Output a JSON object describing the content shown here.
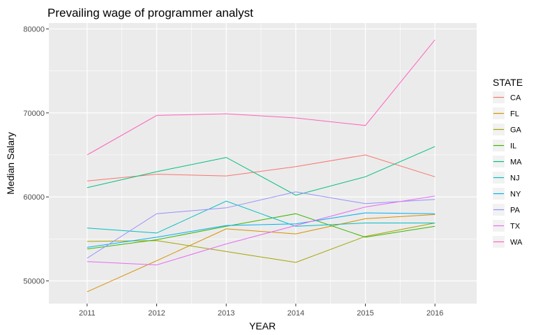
{
  "chart_data": {
    "type": "line",
    "title": "Prevailing wage of programmer analyst",
    "xlabel": "YEAR",
    "ylabel": "Median Salary",
    "x": [
      2011,
      2012,
      2013,
      2014,
      2015,
      2016
    ],
    "x_tick_labels": [
      "2011",
      "2012",
      "2013",
      "2014",
      "2015",
      "2016"
    ],
    "y_ticks": [
      50000,
      60000,
      70000,
      80000
    ],
    "y_tick_labels": [
      "50000",
      "60000",
      "70000",
      "80000"
    ],
    "xlim": [
      2010.45,
      2016.6
    ],
    "ylim": [
      47300,
      80700
    ],
    "grid": true,
    "legend_title": "STATE",
    "legend_position": "right",
    "panel_background": "#ebebeb",
    "grid_color": "#ffffff",
    "series": [
      {
        "name": "CA",
        "color": "#F8766D",
        "values": [
          61900,
          62700,
          62500,
          63600,
          65000,
          62400
        ]
      },
      {
        "name": "FL",
        "color": "#D89000",
        "values": [
          48700,
          52400,
          56200,
          55600,
          57400,
          57900
        ]
      },
      {
        "name": "GA",
        "color": "#A3A500",
        "values": [
          54700,
          54800,
          53500,
          52200,
          55300,
          56900
        ]
      },
      {
        "name": "IL",
        "color": "#39B600",
        "values": [
          53800,
          54900,
          56500,
          58000,
          55200,
          56500
        ]
      },
      {
        "name": "MA",
        "color": "#00BF7D",
        "values": [
          61100,
          63000,
          64700,
          60200,
          62400,
          66000
        ]
      },
      {
        "name": "NJ",
        "color": "#00BFC4",
        "values": [
          56300,
          55700,
          59500,
          56500,
          56900,
          56900
        ]
      },
      {
        "name": "NY",
        "color": "#00B0F6",
        "values": [
          54000,
          55200,
          56600,
          56800,
          58100,
          58000
        ]
      },
      {
        "name": "PA",
        "color": "#9590FF",
        "values": [
          52700,
          58000,
          58700,
          60600,
          59200,
          59700
        ]
      },
      {
        "name": "TX",
        "color": "#E76BF3",
        "values": [
          52300,
          51900,
          54400,
          56600,
          58800,
          60100
        ]
      },
      {
        "name": "WA",
        "color": "#FF62BC",
        "values": [
          65000,
          69700,
          69900,
          69400,
          68500,
          78700
        ]
      }
    ]
  }
}
